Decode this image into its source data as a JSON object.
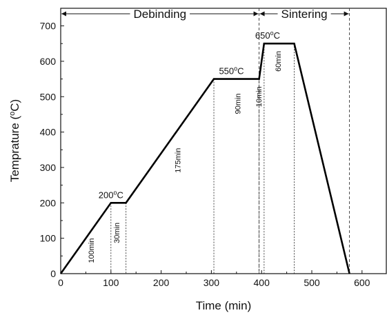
{
  "chart_data": {
    "type": "line",
    "xlabel": "Time (min)",
    "ylabel_main": "Temprature (",
    "ylabel_sup": "o",
    "ylabel_tail": "C)",
    "xlim": [
      0,
      650
    ],
    "ylim": [
      0,
      750
    ],
    "x_ticks": [
      0,
      100,
      200,
      300,
      400,
      500,
      600
    ],
    "y_ticks": [
      0,
      100,
      200,
      300,
      400,
      500,
      600,
      700
    ],
    "grid": false,
    "series": [
      {
        "x": [
          0,
          100,
          130,
          305,
          395,
          405,
          465,
          575
        ],
        "y": [
          0,
          200,
          200,
          550,
          550,
          650,
          650,
          0
        ]
      }
    ],
    "dotted_verticals": [
      {
        "x": 100,
        "y": 200
      },
      {
        "x": 130,
        "y": 200
      },
      {
        "x": 305,
        "y": 550
      },
      {
        "x": 395,
        "y": 550
      },
      {
        "x": 405,
        "y": 650
      },
      {
        "x": 465,
        "y": 650
      }
    ],
    "phases": [
      {
        "label": "Debinding",
        "x_start": 0,
        "x_end": 395
      },
      {
        "label": "Sintering",
        "x_start": 395,
        "x_end": 575
      }
    ],
    "temperature_labels": [
      {
        "main": "200",
        "sup": "o",
        "tail": "C",
        "x": 100,
        "y": 200
      },
      {
        "main": "550",
        "sup": "o",
        "tail": "C",
        "x": 340,
        "y": 550
      },
      {
        "main": "650",
        "sup": "o",
        "tail": "C",
        "x": 412,
        "y": 650
      }
    ],
    "duration_labels": [
      {
        "text": "100min",
        "x": 66,
        "y": 65
      },
      {
        "text": "30min",
        "x": 117,
        "y": 115
      },
      {
        "text": "175min",
        "x": 238,
        "y": 320
      },
      {
        "text": "90min",
        "x": 358,
        "y": 480
      },
      {
        "text": "10min",
        "x": 400,
        "y": 500
      },
      {
        "text": "60min",
        "x": 438,
        "y": 600
      }
    ]
  }
}
